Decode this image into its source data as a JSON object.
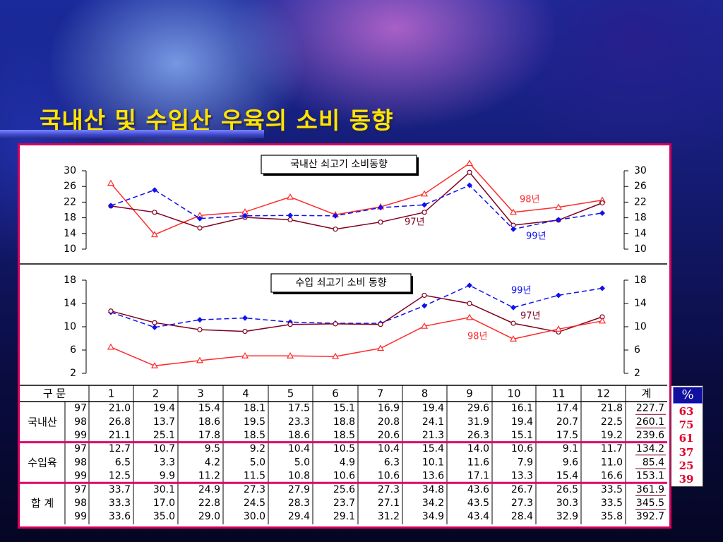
{
  "page": {
    "title": "국내산 및 수입산 우육의 소비 동향"
  },
  "colors": {
    "red": "#ff2a2a",
    "brown": "#800020",
    "blue": "#1010f0",
    "title": "#ffe500",
    "frame": "#d6005a"
  },
  "chart_data": [
    {
      "type": "line",
      "title": "국내산 쇠고기 소비동향",
      "x": [
        1,
        2,
        3,
        4,
        5,
        6,
        7,
        8,
        9,
        10,
        11,
        12
      ],
      "ylim": [
        10,
        30
      ],
      "yticks": [
        30,
        26,
        22,
        18,
        14,
        10
      ],
      "grid": false,
      "series": [
        {
          "name": "98년",
          "values": [
            26.8,
            13.7,
            18.6,
            19.5,
            23.3,
            18.8,
            20.8,
            24.1,
            31.9,
            19.4,
            20.7,
            22.5
          ]
        },
        {
          "name": "97년",
          "values": [
            21.0,
            19.4,
            15.4,
            18.1,
            17.5,
            15.1,
            16.9,
            19.4,
            29.6,
            16.1,
            17.4,
            21.8
          ]
        },
        {
          "name": "99년",
          "values": [
            21.1,
            25.1,
            17.8,
            18.5,
            18.6,
            18.5,
            20.6,
            21.3,
            26.3,
            15.1,
            17.5,
            19.2
          ]
        }
      ]
    },
    {
      "type": "line",
      "title": "수입 쇠고기 소비 동향",
      "x": [
        1,
        2,
        3,
        4,
        5,
        6,
        7,
        8,
        9,
        10,
        11,
        12
      ],
      "ylim": [
        2,
        18
      ],
      "yticks": [
        18,
        14,
        10,
        6,
        2
      ],
      "grid": false,
      "series": [
        {
          "name": "99년",
          "values": [
            12.5,
            9.9,
            11.2,
            11.5,
            10.8,
            10.6,
            10.6,
            13.6,
            17.1,
            13.3,
            15.4,
            16.6
          ]
        },
        {
          "name": "97년",
          "values": [
            12.7,
            10.7,
            9.5,
            9.2,
            10.4,
            10.5,
            10.4,
            15.4,
            14.0,
            10.6,
            9.1,
            11.7
          ]
        },
        {
          "name": "98년",
          "values": [
            6.5,
            3.3,
            4.2,
            5.0,
            5.0,
            4.9,
            6.3,
            10.1,
            11.6,
            7.9,
            9.6,
            11.0
          ]
        }
      ]
    },
    {
      "type": "table",
      "header": [
        "구 문",
        "1",
        "2",
        "3",
        "4",
        "5",
        "6",
        "7",
        "8",
        "9",
        "10",
        "11",
        "12",
        "계"
      ],
      "groups": [
        {
          "label": "국내산",
          "rows": [
            {
              "year": "97",
              "values": [
                "21.0",
                "19.4",
                "15.4",
                "18.1",
                "17.5",
                "15.1",
                "16.9",
                "19.4",
                "29.6",
                "16.1",
                "17.4",
                "21.8"
              ],
              "total": "227.7"
            },
            {
              "year": "98",
              "values": [
                "26.8",
                "13.7",
                "18.6",
                "19.5",
                "23.3",
                "18.8",
                "20.8",
                "24.1",
                "31.9",
                "19.4",
                "20.7",
                "22.5"
              ],
              "total": "260.1"
            },
            {
              "year": "99",
              "values": [
                "21.1",
                "25.1",
                "17.8",
                "18.5",
                "18.6",
                "18.5",
                "20.6",
                "21.3",
                "26.3",
                "15.1",
                "17.5",
                "19.2"
              ],
              "total": "239.6"
            }
          ]
        },
        {
          "label": "수입육",
          "rows": [
            {
              "year": "97",
              "values": [
                "12.7",
                "10.7",
                "9.5",
                "9.2",
                "10.4",
                "10.5",
                "10.4",
                "15.4",
                "14.0",
                "10.6",
                "9.1",
                "11.7"
              ],
              "total": "134.2"
            },
            {
              "year": "98",
              "values": [
                "6.5",
                "3.3",
                "4.2",
                "5.0",
                "5.0",
                "4.9",
                "6.3",
                "10.1",
                "11.6",
                "7.9",
                "9.6",
                "11.0"
              ],
              "total": "85.4"
            },
            {
              "year": "99",
              "values": [
                "12.5",
                "9.9",
                "11.2",
                "11.5",
                "10.8",
                "10.6",
                "10.6",
                "13.6",
                "17.1",
                "13.3",
                "15.4",
                "16.6"
              ],
              "total": "153.1"
            }
          ]
        },
        {
          "label": "합 계",
          "rows": [
            {
              "year": "97",
              "values": [
                "33.7",
                "30.1",
                "24.9",
                "27.3",
                "27.9",
                "25.6",
                "27.3",
                "34.8",
                "43.6",
                "26.7",
                "26.5",
                "33.5"
              ],
              "total": "361.9"
            },
            {
              "year": "98",
              "values": [
                "33.3",
                "17.0",
                "22.8",
                "24.5",
                "28.3",
                "23.7",
                "27.1",
                "34.2",
                "43.5",
                "27.3",
                "30.3",
                "33.5"
              ],
              "total": "345.5"
            },
            {
              "year": "99",
              "values": [
                "33.6",
                "35.0",
                "29.0",
                "30.0",
                "29.4",
                "29.1",
                "31.2",
                "34.9",
                "43.4",
                "28.4",
                "32.9",
                "35.8"
              ],
              "total": "392.7"
            }
          ]
        }
      ]
    }
  ],
  "percent": {
    "header": "%",
    "values": [
      "63",
      "75",
      "61",
      "37",
      "25",
      "39"
    ]
  }
}
